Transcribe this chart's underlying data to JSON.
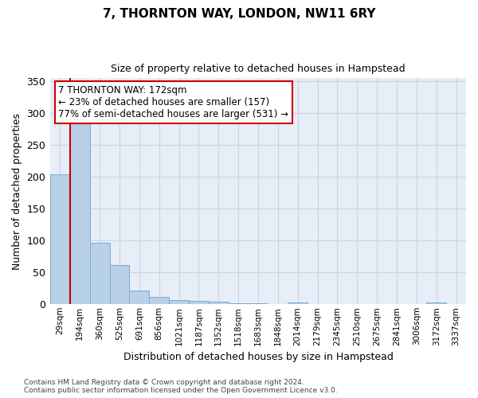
{
  "title": "7, THORNTON WAY, LONDON, NW11 6RY",
  "subtitle": "Size of property relative to detached houses in Hampstead",
  "xlabel": "Distribution of detached houses by size in Hampstead",
  "ylabel": "Number of detached properties",
  "bar_color": "#b8d0e8",
  "bar_edge_color": "#7aaace",
  "grid_color": "#c8d4e4",
  "background_color": "#e8eef8",
  "categories": [
    "29sqm",
    "194sqm",
    "360sqm",
    "525sqm",
    "691sqm",
    "856sqm",
    "1021sqm",
    "1187sqm",
    "1352sqm",
    "1518sqm",
    "1683sqm",
    "1848sqm",
    "2014sqm",
    "2179sqm",
    "2345sqm",
    "2510sqm",
    "2675sqm",
    "2841sqm",
    "3006sqm",
    "3172sqm",
    "3337sqm"
  ],
  "values": [
    204,
    291,
    97,
    61,
    21,
    12,
    6,
    5,
    4,
    1,
    1,
    0,
    3,
    0,
    0,
    0,
    0,
    0,
    0,
    3,
    0
  ],
  "vline_color": "#cc0000",
  "annotation_line1": "7 THORNTON WAY: 172sqm",
  "annotation_line2": "← 23% of detached houses are smaller (157)",
  "annotation_line3": "77% of semi-detached houses are larger (531) →",
  "annotation_box_color": "#ffffff",
  "annotation_box_edge_color": "#cc0000",
  "footer_text": "Contains HM Land Registry data © Crown copyright and database right 2024.\nContains public sector information licensed under the Open Government Licence v3.0.",
  "ylim": [
    0,
    355
  ],
  "yticks": [
    0,
    50,
    100,
    150,
    200,
    250,
    300,
    350
  ]
}
